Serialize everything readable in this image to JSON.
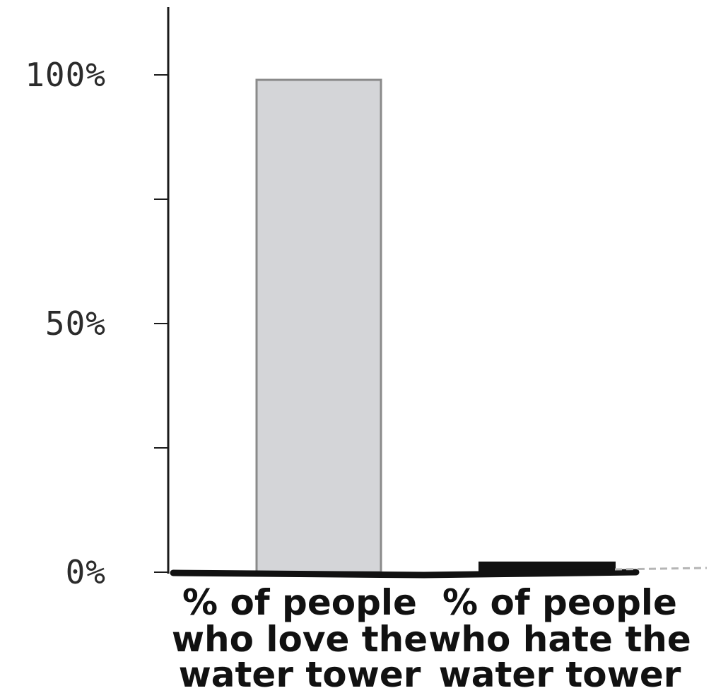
{
  "chart_data": {
    "type": "bar",
    "categories": [
      [
        "% of people",
        "who love the",
        "water tower"
      ],
      [
        "% of people",
        "who hate the",
        "water tower"
      ]
    ],
    "values": [
      99,
      2
    ],
    "ylim": [
      0,
      100
    ],
    "yticks": [
      0,
      25,
      50,
      75,
      100
    ],
    "ytick_labels": [
      "0%",
      "",
      "50%",
      "",
      "100%"
    ],
    "grid": false,
    "legend": "none",
    "colors": {
      "bar_fills": [
        "#d4d5d8",
        "#111111"
      ],
      "bar_strokes": [
        "#8a8a8a",
        "#111111"
      ],
      "axis": "#1a1a1a"
    }
  }
}
